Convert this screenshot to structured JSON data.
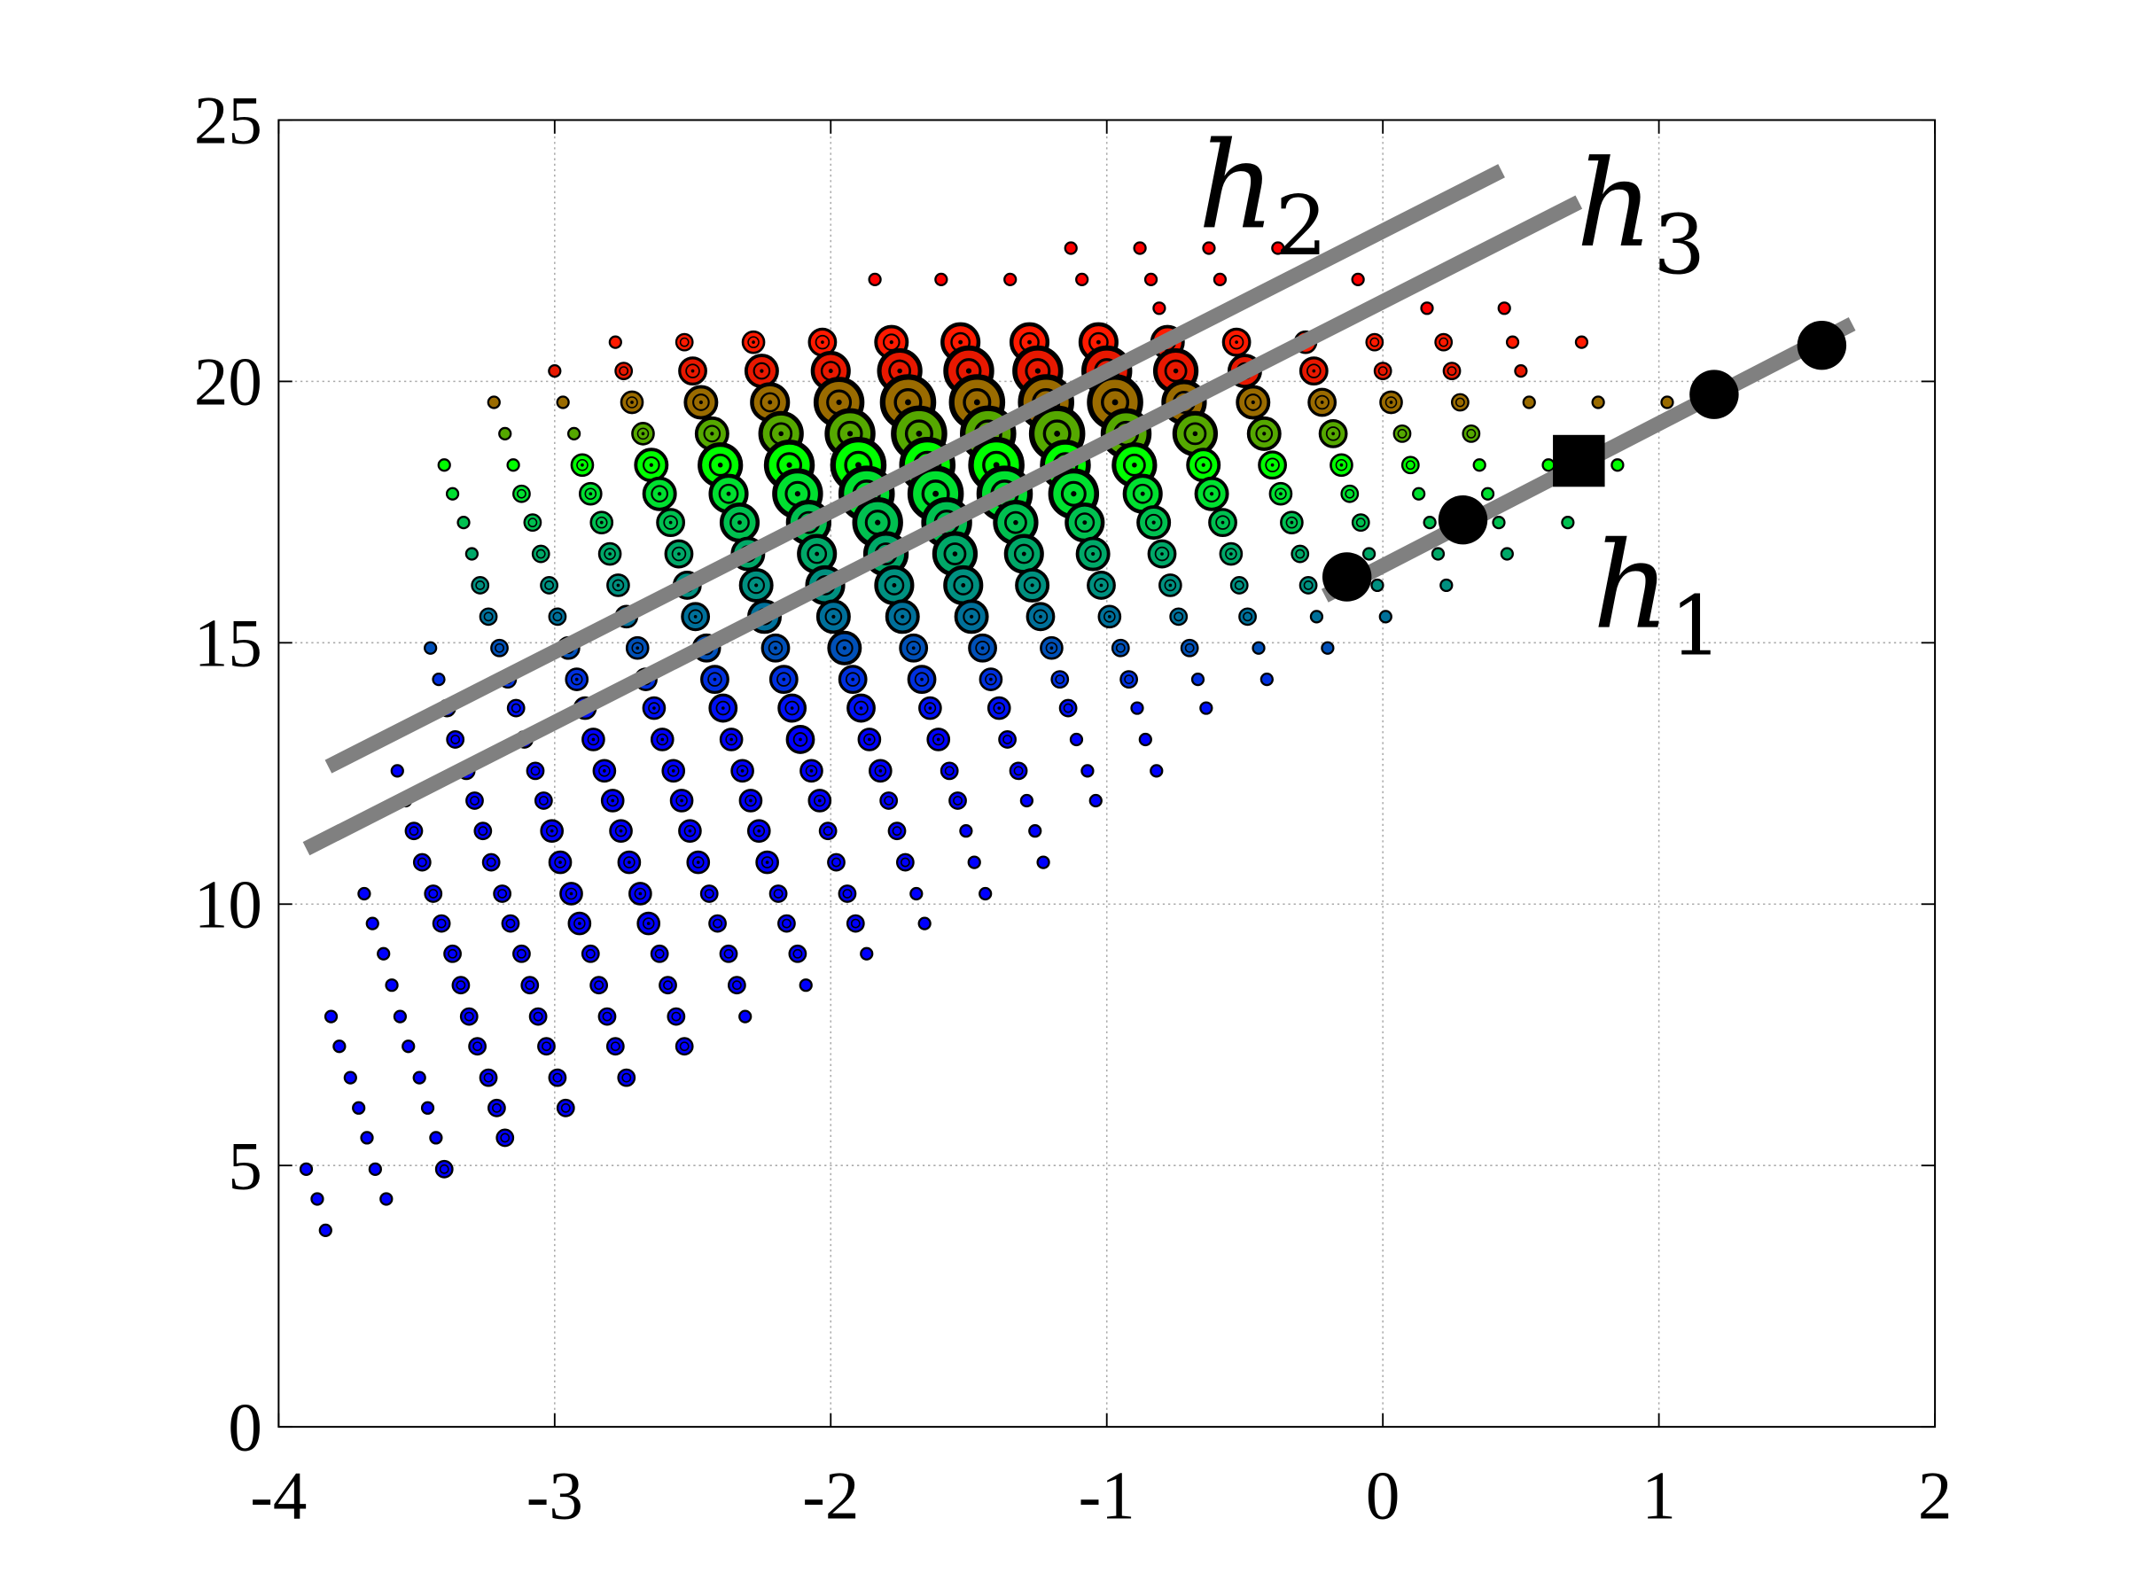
{
  "chart_data": {
    "type": "scatter",
    "title": "",
    "xlabel": "",
    "ylabel": "",
    "xlim": [
      -4,
      2
    ],
    "ylim": [
      0,
      25
    ],
    "xticks": [
      "-4",
      "-3",
      "-2",
      "-1",
      "0",
      "1",
      "2"
    ],
    "yticks": [
      "0",
      "5",
      "10",
      "15",
      "20",
      "25"
    ],
    "grid": true,
    "legend": "none",
    "grid_rows": [
      {
        "y": 22.55,
        "color": "#ff0000",
        "x": [
          -1.13,
          -0.88,
          -0.63,
          -0.38
        ],
        "sizes": [
          2,
          2,
          2,
          2
        ]
      },
      {
        "y": 21.95,
        "color": "#ff0000",
        "x": [
          -1.84,
          -1.6,
          -1.35,
          -1.09,
          -0.84,
          -0.59,
          -0.34,
          -0.09
        ],
        "sizes": [
          2,
          2,
          2,
          2,
          2,
          2,
          2,
          2
        ]
      },
      {
        "y": 21.4,
        "color": "#ff0000",
        "x": [
          -0.81,
          0.16,
          0.44
        ],
        "sizes": [
          2,
          2,
          2
        ]
      },
      {
        "y": 20.75,
        "color": "#ff1a00",
        "x": [
          -2.78,
          -2.53,
          -2.28,
          -2.03,
          -1.78,
          -1.53,
          -1.28,
          -1.03,
          -0.78,
          -0.53,
          -0.28,
          -0.03,
          0.22,
          0.47,
          0.72
        ],
        "sizes": [
          2,
          3,
          4,
          5,
          6,
          7,
          7,
          7,
          6,
          5,
          4,
          3,
          3,
          2,
          2
        ]
      },
      {
        "y": 20.2,
        "color": "#e81800",
        "x": [
          -3.0,
          -2.75,
          -2.5,
          -2.25,
          -2.0,
          -1.75,
          -1.5,
          -1.25,
          -1.0,
          -0.75,
          -0.5,
          -0.25,
          0.0,
          0.25,
          0.5
        ],
        "sizes": [
          2,
          3,
          5,
          6,
          7,
          8,
          9,
          9,
          9,
          8,
          6,
          5,
          3,
          3,
          2
        ]
      },
      {
        "y": 19.6,
        "color": "#9a6b00",
        "x": [
          -3.22,
          -2.97,
          -2.72,
          -2.47,
          -2.22,
          -1.97,
          -1.72,
          -1.47,
          -1.22,
          -0.97,
          -0.72,
          -0.47,
          -0.22,
          0.03,
          0.28,
          0.53,
          0.78,
          1.03
        ],
        "sizes": [
          2,
          2,
          4,
          6,
          7,
          9,
          10,
          10,
          10,
          10,
          8,
          6,
          5,
          4,
          3,
          2,
          2,
          2
        ]
      },
      {
        "y": 19.0,
        "color": "#55a800",
        "x": [
          -3.18,
          -2.93,
          -2.68,
          -2.43,
          -2.18,
          -1.93,
          -1.68,
          -1.43,
          -1.18,
          -0.93,
          -0.68,
          -0.43,
          -0.18,
          0.07,
          0.32
        ],
        "sizes": [
          2,
          2,
          4,
          6,
          8,
          9,
          10,
          10,
          10,
          9,
          8,
          6,
          5,
          3,
          3
        ]
      },
      {
        "y": 18.4,
        "color": "#00ff00",
        "x": [
          -3.4,
          -3.15,
          -2.9,
          -2.65,
          -2.4,
          -2.15,
          -1.9,
          -1.65,
          -1.4,
          -1.15,
          -0.9,
          -0.65,
          -0.4,
          -0.15,
          0.1,
          0.35,
          0.6,
          0.85
        ],
        "sizes": [
          2,
          2,
          4,
          6,
          8,
          9,
          10,
          10,
          10,
          9,
          8,
          6,
          5,
          4,
          3,
          2,
          2,
          2
        ]
      },
      {
        "y": 17.85,
        "color": "#00e030",
        "x": [
          -3.37,
          -3.12,
          -2.87,
          -2.62,
          -2.37,
          -2.12,
          -1.87,
          -1.62,
          -1.37,
          -1.12,
          -0.87,
          -0.62,
          -0.37,
          -0.12,
          0.13,
          0.38
        ],
        "sizes": [
          2,
          3,
          4,
          6,
          7,
          9,
          10,
          10,
          10,
          9,
          7,
          6,
          4,
          3,
          2,
          2
        ]
      },
      {
        "y": 17.3,
        "color": "#00c050",
        "x": [
          -3.33,
          -3.08,
          -2.83,
          -2.58,
          -2.33,
          -2.08,
          -1.83,
          -1.58,
          -1.33,
          -1.08,
          -0.83,
          -0.58,
          -0.33,
          -0.08,
          0.17,
          0.42,
          0.67
        ],
        "sizes": [
          2,
          3,
          4,
          5,
          7,
          8,
          9,
          9,
          8,
          7,
          6,
          5,
          4,
          3,
          2,
          2,
          2
        ]
      },
      {
        "y": 16.7,
        "color": "#00a868",
        "x": [
          -3.3,
          -3.05,
          -2.8,
          -2.55,
          -2.3,
          -2.05,
          -1.8,
          -1.55,
          -1.3,
          -1.05,
          -0.8,
          -0.55,
          -0.3,
          -0.05,
          0.2,
          0.45
        ],
        "sizes": [
          2,
          3,
          4,
          5,
          6,
          7,
          8,
          8,
          7,
          6,
          5,
          4,
          3,
          2,
          2,
          2
        ]
      },
      {
        "y": 16.1,
        "color": "#009080",
        "x": [
          -3.27,
          -3.02,
          -2.77,
          -2.52,
          -2.27,
          -2.02,
          -1.77,
          -1.52,
          -1.27,
          -1.02,
          -0.77,
          -0.52,
          -0.27,
          -0.02,
          0.23
        ],
        "sizes": [
          3,
          3,
          4,
          5,
          6,
          7,
          7,
          7,
          6,
          5,
          4,
          3,
          3,
          2,
          2
        ]
      },
      {
        "y": 15.5,
        "color": "#00709a",
        "x": [
          -3.24,
          -2.99,
          -2.74,
          -2.49,
          -2.24,
          -1.99,
          -1.74,
          -1.49,
          -1.24,
          -0.99,
          -0.74,
          -0.49,
          -0.24,
          0.01
        ],
        "sizes": [
          3,
          3,
          4,
          5,
          6,
          6,
          6,
          6,
          5,
          4,
          3,
          3,
          2,
          2
        ]
      },
      {
        "y": 14.9,
        "color": "#0050b8",
        "x": [
          -3.45,
          -3.2,
          -2.95,
          -2.7,
          -2.45,
          -2.2,
          -1.95,
          -1.7,
          -1.45,
          -1.2,
          -0.95,
          -0.7,
          -0.45,
          -0.2
        ],
        "sizes": [
          2,
          3,
          4,
          4,
          5,
          5,
          6,
          5,
          5,
          4,
          3,
          3,
          2,
          2
        ]
      },
      {
        "y": 14.3,
        "color": "#0030e0",
        "x": [
          -3.42,
          -3.17,
          -2.92,
          -2.67,
          -2.42,
          -2.17,
          -1.92,
          -1.67,
          -1.42,
          -1.17,
          -0.92,
          -0.67,
          -0.42
        ],
        "sizes": [
          2,
          3,
          4,
          4,
          5,
          5,
          5,
          5,
          4,
          3,
          3,
          2,
          2
        ]
      },
      {
        "y": 13.75,
        "color": "#0010f8",
        "x": [
          -3.39,
          -3.14,
          -2.89,
          -2.64,
          -2.39,
          -2.14,
          -1.89,
          -1.64,
          -1.39,
          -1.14,
          -0.89,
          -0.64
        ],
        "sizes": [
          3,
          3,
          4,
          4,
          5,
          5,
          5,
          4,
          4,
          3,
          2,
          2
        ]
      },
      {
        "y": 13.15,
        "color": "#0000ff",
        "x": [
          -3.36,
          -3.11,
          -2.86,
          -2.61,
          -2.36,
          -2.11,
          -1.86,
          -1.61,
          -1.36,
          -1.11,
          -0.86
        ],
        "sizes": [
          3,
          3,
          4,
          4,
          4,
          5,
          4,
          4,
          3,
          2,
          2
        ]
      },
      {
        "y": 12.55,
        "color": "#0000ff",
        "x": [
          -3.57,
          -3.32,
          -3.07,
          -2.82,
          -2.57,
          -2.32,
          -2.07,
          -1.82,
          -1.57,
          -1.32,
          -1.07,
          -0.82
        ],
        "sizes": [
          2,
          3,
          3,
          4,
          4,
          4,
          4,
          4,
          3,
          3,
          2,
          2
        ]
      },
      {
        "y": 11.98,
        "color": "#0000ff",
        "x": [
          -3.54,
          -3.29,
          -3.04,
          -2.79,
          -2.54,
          -2.29,
          -2.04,
          -1.79,
          -1.54,
          -1.29,
          -1.04
        ],
        "sizes": [
          2,
          3,
          3,
          4,
          4,
          4,
          4,
          3,
          3,
          2,
          2
        ]
      },
      {
        "y": 11.4,
        "color": "#0000ff",
        "x": [
          -3.51,
          -3.26,
          -3.01,
          -2.76,
          -2.51,
          -2.26,
          -2.01,
          -1.76,
          -1.51,
          -1.26
        ],
        "sizes": [
          3,
          3,
          4,
          4,
          4,
          4,
          3,
          3,
          2,
          2
        ]
      },
      {
        "y": 10.8,
        "color": "#0000ff",
        "x": [
          -3.48,
          -3.23,
          -2.98,
          -2.73,
          -2.48,
          -2.23,
          -1.98,
          -1.73,
          -1.48,
          -1.23
        ],
        "sizes": [
          3,
          3,
          4,
          4,
          4,
          4,
          3,
          3,
          2,
          2
        ]
      },
      {
        "y": 10.2,
        "color": "#0000ff",
        "x": [
          -3.69,
          -3.44,
          -3.19,
          -2.94,
          -2.69,
          -2.44,
          -2.19,
          -1.94,
          -1.69,
          -1.44
        ],
        "sizes": [
          2,
          3,
          3,
          4,
          4,
          3,
          3,
          3,
          2,
          2
        ]
      },
      {
        "y": 9.63,
        "color": "#0000ff",
        "x": [
          -3.66,
          -3.41,
          -3.16,
          -2.91,
          -2.66,
          -2.41,
          -2.16,
          -1.91,
          -1.66
        ],
        "sizes": [
          2,
          3,
          3,
          4,
          4,
          3,
          3,
          3,
          2
        ]
      },
      {
        "y": 9.05,
        "color": "#0000ff",
        "x": [
          -3.62,
          -3.37,
          -3.12,
          -2.87,
          -2.62,
          -2.37,
          -2.12,
          -1.87
        ],
        "sizes": [
          2,
          3,
          3,
          3,
          3,
          3,
          3,
          2
        ]
      },
      {
        "y": 8.45,
        "color": "#0000ff",
        "x": [
          -3.59,
          -3.34,
          -3.09,
          -2.84,
          -2.59,
          -2.34,
          -2.09
        ],
        "sizes": [
          2,
          3,
          3,
          3,
          3,
          3,
          2
        ]
      },
      {
        "y": 7.85,
        "color": "#0000ff",
        "x": [
          -3.81,
          -3.56,
          -3.31,
          -3.06,
          -2.81,
          -2.56,
          -2.31
        ],
        "sizes": [
          2,
          2,
          3,
          3,
          3,
          3,
          2
        ]
      },
      {
        "y": 7.28,
        "color": "#0000ff",
        "x": [
          -3.78,
          -3.53,
          -3.28,
          -3.03,
          -2.78,
          -2.53
        ],
        "sizes": [
          2,
          2,
          3,
          3,
          3,
          3
        ]
      },
      {
        "y": 6.68,
        "color": "#0000ff",
        "x": [
          -3.74,
          -3.49,
          -3.24,
          -2.99,
          -2.74
        ],
        "sizes": [
          2,
          2,
          3,
          3,
          3
        ]
      },
      {
        "y": 6.1,
        "color": "#0000ff",
        "x": [
          -3.71,
          -3.46,
          -3.21,
          -2.96
        ],
        "sizes": [
          2,
          2,
          3,
          3
        ]
      },
      {
        "y": 5.53,
        "color": "#0000ff",
        "x": [
          -3.68,
          -3.43,
          -3.18
        ],
        "sizes": [
          2,
          2,
          3
        ]
      },
      {
        "y": 4.93,
        "color": "#0000ff",
        "x": [
          -3.9,
          -3.65,
          -3.4
        ],
        "sizes": [
          2,
          2,
          3
        ]
      },
      {
        "y": 4.36,
        "color": "#0000ff",
        "x": [
          -3.86,
          -3.61
        ],
        "sizes": [
          2,
          2
        ]
      },
      {
        "y": 3.76,
        "color": "#0000ff",
        "x": [
          -3.83
        ],
        "sizes": [
          2
        ]
      }
    ],
    "lines": [
      {
        "label": "h",
        "sub": "1",
        "color": "#808080",
        "from": [
          -0.21,
          15.9
        ],
        "to": [
          1.7,
          21.1
        ],
        "label_at": [
          0.76,
          15.3
        ]
      },
      {
        "label": "h",
        "sub": "2",
        "color": "#808080",
        "from": [
          -3.82,
          12.63
        ],
        "to": [
          0.43,
          24.03
        ],
        "label_at": [
          -0.67,
          22.95
        ]
      },
      {
        "label": "h",
        "sub": "3",
        "color": "#808080",
        "from": [
          -3.9,
          11.06
        ],
        "to": [
          0.71,
          23.43
        ],
        "label_at": [
          0.7,
          22.6
        ]
      }
    ],
    "black_circles": [
      {
        "x": -0.13,
        "y": 16.26
      },
      {
        "x": 0.29,
        "y": 17.35
      },
      {
        "x": 1.2,
        "y": 19.75
      },
      {
        "x": 1.59,
        "y": 20.69
      }
    ],
    "black_square": {
      "x": 0.71,
      "y": 18.48
    }
  }
}
